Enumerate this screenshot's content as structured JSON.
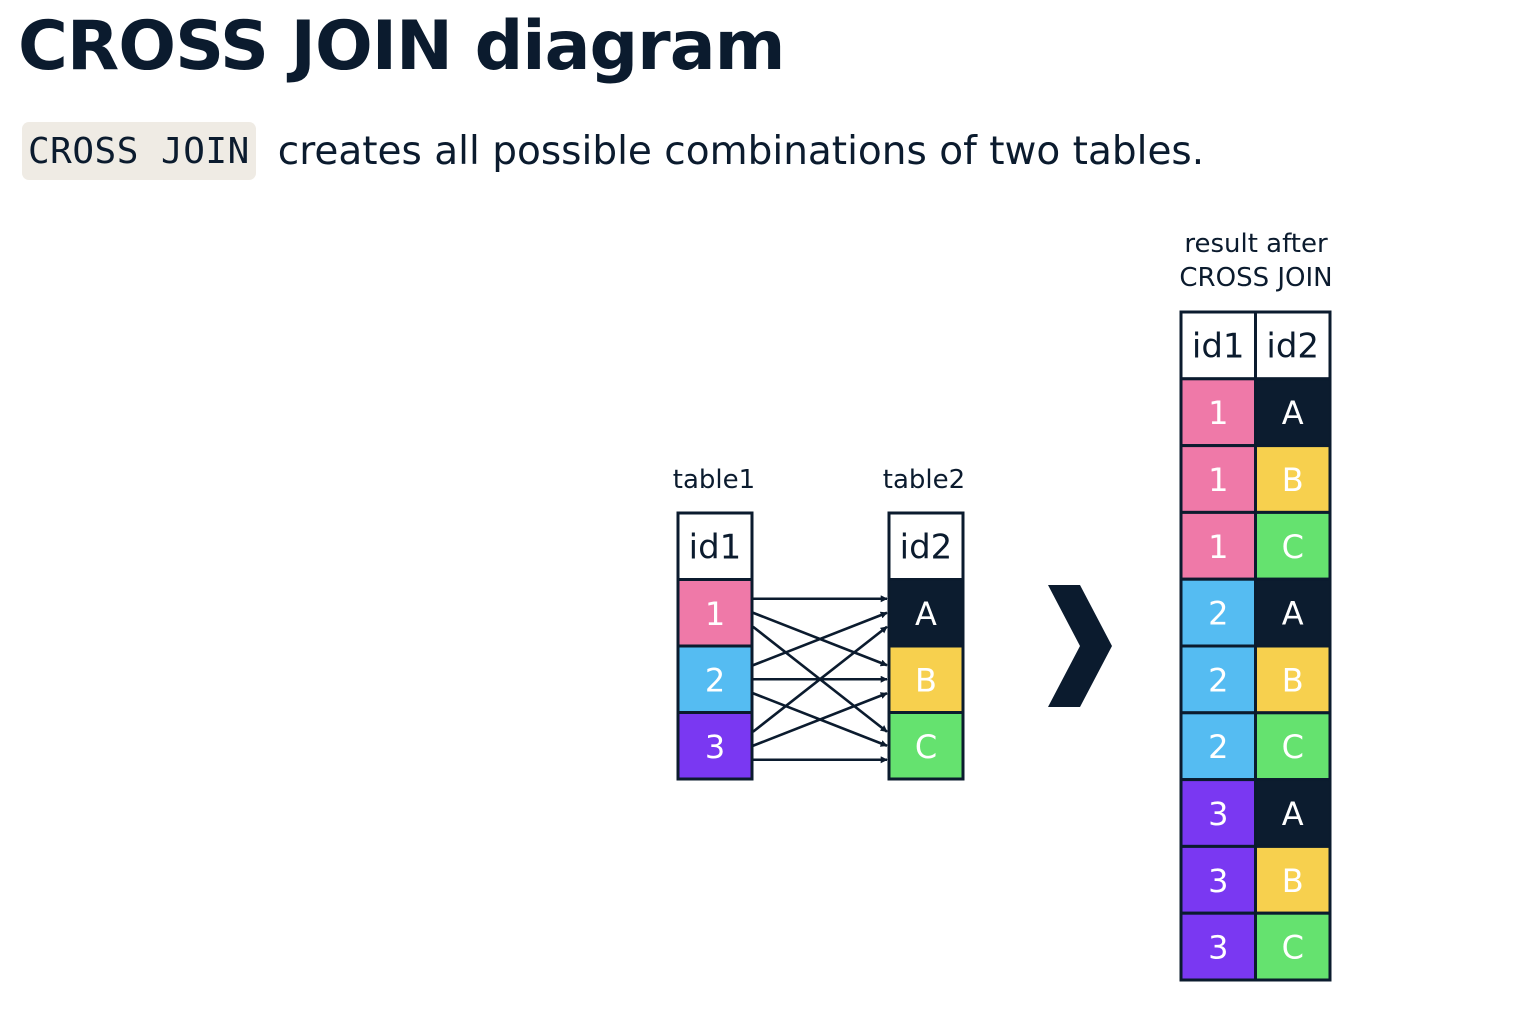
{
  "header": {
    "title": "CROSS JOIN diagram",
    "code": "CROSS JOIN",
    "description": "creates all possible combinations of two tables."
  },
  "colors": {
    "1": "#ef79a8",
    "2": "#55bcf2",
    "3": "#7a38f2",
    "A": "#0c1c2f",
    "B": "#f7d04e",
    "C": "#65e26f",
    "ink": "#0b1b2e"
  },
  "table1": {
    "name": "table1",
    "header": "id1",
    "rows": [
      "1",
      "2",
      "3"
    ]
  },
  "table2": {
    "name": "table2",
    "header": "id2",
    "rows": [
      "A",
      "B",
      "C"
    ]
  },
  "result": {
    "label_line1": "result after",
    "label_line2": "CROSS JOIN",
    "headers": [
      "id1",
      "id2"
    ],
    "rows": [
      [
        "1",
        "A"
      ],
      [
        "1",
        "B"
      ],
      [
        "1",
        "C"
      ],
      [
        "2",
        "A"
      ],
      [
        "2",
        "B"
      ],
      [
        "2",
        "C"
      ],
      [
        "3",
        "A"
      ],
      [
        "3",
        "B"
      ],
      [
        "3",
        "C"
      ]
    ]
  },
  "connections": [
    [
      "1",
      "A"
    ],
    [
      "1",
      "B"
    ],
    [
      "1",
      "C"
    ],
    [
      "2",
      "A"
    ],
    [
      "2",
      "B"
    ],
    [
      "2",
      "C"
    ],
    [
      "3",
      "A"
    ],
    [
      "3",
      "B"
    ],
    [
      "3",
      "C"
    ]
  ]
}
